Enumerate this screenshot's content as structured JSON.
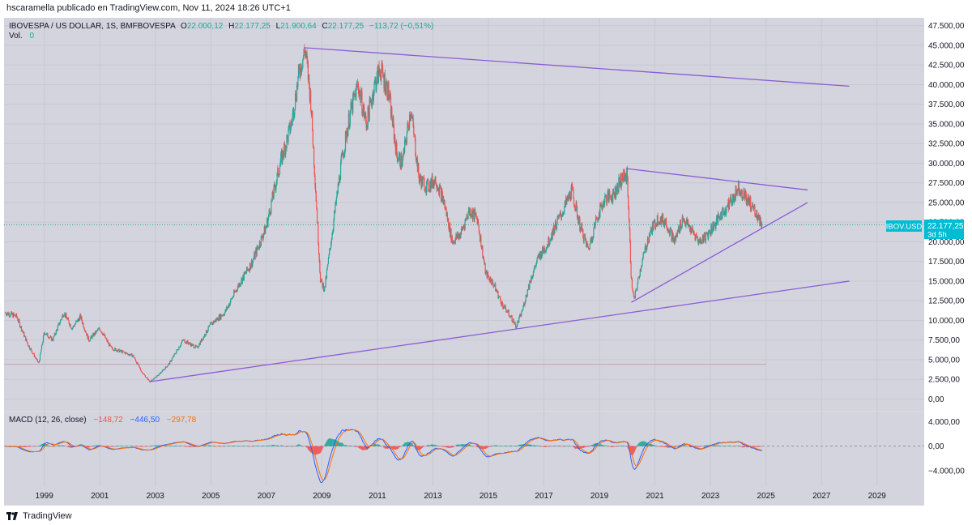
{
  "header": {
    "text": "hscaramella publicado en TradingView.com, Nov 11, 2024 18:26 UTC+1"
  },
  "legend": {
    "symbol": "IBOVESPA / US DOLLAR, 1S, BMFBOVESPA",
    "o_label": "O",
    "o_value": "22.000,12",
    "h_label": "H",
    "h_value": "22.177,25",
    "l_label": "L",
    "l_value": "21.900,64",
    "c_label": "C",
    "c_value": "22.177,25",
    "change": "−113,72 (−0,51%)",
    "vol_label": "Vol.",
    "vol_value": "0"
  },
  "price_tag": {
    "symbol": "IBOV.USD",
    "value": "22.177,25",
    "countdown": "3d 5h"
  },
  "macd": {
    "label": "MACD (12, 26, close)",
    "hist": "−148,72",
    "macd": "−446,50",
    "signal": "−297,78"
  },
  "footer": {
    "brand": "TradingView"
  },
  "colors": {
    "background": "#d4d4de",
    "up": "#26a69a",
    "down": "#ef5350",
    "trendline": "#8a5cd6",
    "macd_line": "#2962ff",
    "signal_line": "#ff6d00",
    "price_tag": "#00bcd4"
  },
  "chart_data": [
    {
      "type": "candlestick",
      "title": "IBOVESPA / US DOLLAR, 1S, BMFBOVESPA",
      "y_ticks": [
        "47.500,00",
        "45.000,00",
        "42.500,00",
        "40.000,00",
        "37.500,00",
        "35.000,00",
        "32.500,00",
        "30.000,00",
        "27.500,00",
        "25.000,00",
        "22.500,00",
        "20.000,00",
        "17.500,00",
        "15.000,00",
        "12.500,00",
        "10.000,00",
        "7.500,00",
        "5.000,00",
        "2.500,00",
        "0,00"
      ],
      "y_tick_values": [
        47500,
        45000,
        42500,
        40000,
        37500,
        35000,
        32500,
        30000,
        27500,
        25000,
        22500,
        20000,
        17500,
        15000,
        12500,
        10000,
        7500,
        5000,
        2500,
        0
      ],
      "ylim": [
        -1500,
        48500
      ],
      "x_ticks": [
        "1999",
        "2001",
        "2003",
        "2005",
        "2007",
        "2009",
        "2011",
        "2013",
        "2015",
        "2017",
        "2019",
        "2021",
        "2023",
        "2025",
        "2027",
        "2029"
      ],
      "x_tick_values": [
        1999,
        2001,
        2003,
        2005,
        2007,
        2009,
        2011,
        2013,
        2015,
        2017,
        2019,
        2021,
        2023,
        2025,
        2027,
        2029
      ],
      "xlim": [
        1997.55,
        2030.7
      ],
      "last_price": 22177.25,
      "x": [
        1997.6,
        1998.0,
        1998.4,
        1998.8,
        1999.0,
        1999.3,
        1999.7,
        2000.0,
        2000.3,
        2000.6,
        2001.0,
        2001.4,
        2001.8,
        2002.2,
        2002.5,
        2002.8,
        2003.1,
        2003.5,
        2004.0,
        2004.5,
        2005.0,
        2005.5,
        2006.0,
        2006.5,
        2007.0,
        2007.5,
        2007.9,
        2008.2,
        2008.4,
        2008.6,
        2008.8,
        2008.95,
        2009.1,
        2009.4,
        2009.7,
        2010.0,
        2010.3,
        2010.6,
        2010.9,
        2011.1,
        2011.4,
        2011.7,
        2011.9,
        2012.2,
        2012.5,
        2012.8,
        2013.1,
        2013.4,
        2013.7,
        2014.0,
        2014.3,
        2014.6,
        2014.9,
        2015.2,
        2015.5,
        2015.8,
        2016.0,
        2016.2,
        2016.5,
        2016.8,
        2017.1,
        2017.4,
        2017.7,
        2018.0,
        2018.3,
        2018.6,
        2018.9,
        2019.2,
        2019.5,
        2019.8,
        2020.0,
        2020.15,
        2020.25,
        2020.5,
        2020.8,
        2021.1,
        2021.4,
        2021.7,
        2022.0,
        2022.3,
        2022.6,
        2022.9,
        2023.2,
        2023.5,
        2023.8,
        2024.0,
        2024.3,
        2024.6,
        2024.85
      ],
      "values": [
        11000,
        10500,
        7000,
        4500,
        8500,
        7500,
        11000,
        9000,
        10500,
        7500,
        9000,
        6500,
        6000,
        5500,
        3500,
        2200,
        3000,
        4500,
        7500,
        6500,
        9500,
        11000,
        14500,
        17500,
        22000,
        30000,
        35000,
        42000,
        44500,
        38000,
        25000,
        15000,
        14000,
        22000,
        30000,
        36000,
        40000,
        35000,
        40000,
        42000,
        39000,
        31000,
        30000,
        37000,
        28000,
        27000,
        28000,
        25000,
        20000,
        21000,
        24000,
        23000,
        16000,
        14500,
        12000,
        10500,
        9200,
        11000,
        15000,
        18000,
        19500,
        22000,
        24000,
        26500,
        22000,
        19000,
        23000,
        25500,
        26000,
        28000,
        28500,
        15000,
        12500,
        17000,
        21000,
        23000,
        22500,
        20000,
        23000,
        21500,
        20000,
        21000,
        22500,
        24000,
        25500,
        27000,
        25500,
        24000,
        22177
      ]
    },
    {
      "type": "line",
      "title": "MACD (12, 26, close)",
      "y_ticks": [
        "4.000,00",
        "0,00",
        "−4.000,00"
      ],
      "y_tick_values": [
        4000,
        0,
        -4000
      ],
      "ylim": [
        -6500,
        5500
      ],
      "series": [
        {
          "name": "MACD",
          "values": [
            -446.5
          ]
        },
        {
          "name": "Signal",
          "values": [
            -297.78
          ]
        },
        {
          "name": "Histogram",
          "values": [
            -148.72
          ]
        }
      ]
    }
  ]
}
